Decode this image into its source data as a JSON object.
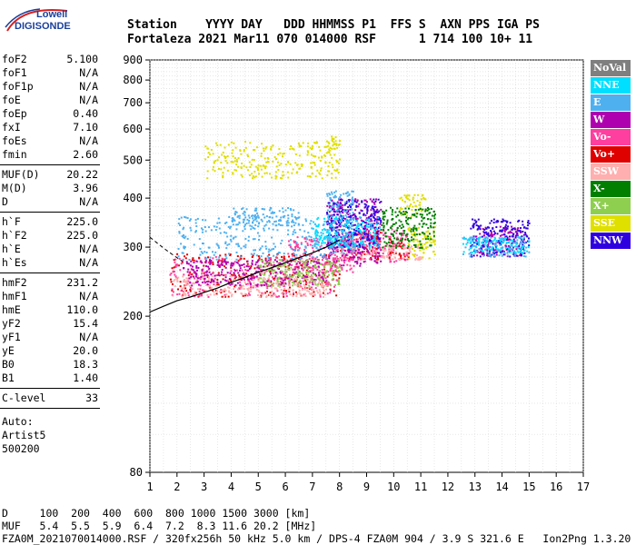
{
  "logo": {
    "line1": "Lowell",
    "line2": "DIGISONDE"
  },
  "header": {
    "labels": "Station    YYYY DAY   DDD HHMMSS P1  FFS S  AXN PPS IGA PS",
    "values": "Fortaleza 2021 Mar11 070 014000 RSF      1 714 100 10+ 11"
  },
  "sidebar": {
    "group1": [
      {
        "k": "foF2",
        "v": "5.100"
      },
      {
        "k": "foF1",
        "v": "N/A"
      },
      {
        "k": "foF1p",
        "v": "N/A"
      },
      {
        "k": "foE",
        "v": "N/A"
      },
      {
        "k": "foEp",
        "v": "0.40"
      },
      {
        "k": "fxI",
        "v": "7.10"
      },
      {
        "k": "foEs",
        "v": "N/A"
      },
      {
        "k": "fmin",
        "v": "2.60"
      }
    ],
    "group2": [
      {
        "k": "MUF(D)",
        "v": "20.22"
      },
      {
        "k": "M(D)",
        "v": "3.96"
      },
      {
        "k": "D",
        "v": "N/A"
      }
    ],
    "group3": [
      {
        "k": "h`F",
        "v": "225.0"
      },
      {
        "k": "h`F2",
        "v": "225.0"
      },
      {
        "k": "h`E",
        "v": "N/A"
      },
      {
        "k": "h`Es",
        "v": "N/A"
      }
    ],
    "group4": [
      {
        "k": "hmF2",
        "v": "231.2"
      },
      {
        "k": "hmF1",
        "v": "N/A"
      },
      {
        "k": "hmE",
        "v": "110.0"
      },
      {
        "k": "yF2",
        "v": "15.4"
      },
      {
        "k": "yF1",
        "v": "N/A"
      },
      {
        "k": "yE",
        "v": "20.0"
      },
      {
        "k": "B0",
        "v": "18.3"
      },
      {
        "k": "B1",
        "v": "1.40"
      }
    ],
    "group5": [
      {
        "k": "C-level",
        "v": "33"
      }
    ],
    "auto": [
      "Auto:",
      "Artist5",
      "500200"
    ]
  },
  "legend": [
    {
      "label": "NoVal",
      "color": "#7f7f7f"
    },
    {
      "label": "NNE",
      "color": "#00dfff"
    },
    {
      "label": "E",
      "color": "#4fb0ef"
    },
    {
      "label": "W",
      "color": "#af00af"
    },
    {
      "label": "Vo-",
      "color": "#ff3f9f"
    },
    {
      "label": "Vo+",
      "color": "#df0000"
    },
    {
      "label": "SSW",
      "color": "#ffafaf"
    },
    {
      "label": "X-",
      "color": "#007f00"
    },
    {
      "label": "X+",
      "color": "#8fcf4f"
    },
    {
      "label": "SSE",
      "color": "#dfdf00"
    },
    {
      "label": "NNW",
      "color": "#2f00df"
    }
  ],
  "footer": {
    "line1": "D     100  200  400  600  800 1000 1500 3000 [km]",
    "line2": "MUF   5.4  5.5  5.9  6.4  7.2  8.3 11.6 20.2 [MHz]",
    "line3": "FZA0M_2021070014000.RSF / 320fx256h 50 kHz 5.0 km / DPS-4 FZA0M 904 / 3.9 S 321.6 E   Ion2Png 1.3.20"
  },
  "chart_data": {
    "type": "scatter",
    "xlim": [
      1,
      17
    ],
    "ylim": [
      80,
      900
    ],
    "xticks": [
      1,
      2,
      3,
      4,
      5,
      6,
      7,
      8,
      9,
      10,
      11,
      12,
      13,
      14,
      15,
      16,
      17
    ],
    "yticks": [
      80,
      200,
      300,
      400,
      500,
      600,
      700,
      800,
      900
    ],
    "grid": true,
    "curve": {
      "x": [
        1.0,
        1.5,
        2.0,
        2.5,
        3.0,
        3.5,
        4.0,
        4.5,
        5.0,
        5.5,
        6.0,
        6.5,
        7.0,
        7.5,
        8.0
      ],
      "y": [
        205,
        212,
        219,
        224,
        230,
        236,
        244,
        251,
        259,
        266,
        274,
        282,
        290,
        300,
        313
      ]
    },
    "dash": {
      "x": [
        1.0,
        1.3,
        1.6,
        1.9,
        2.2
      ],
      "y": [
        318,
        306,
        295,
        285,
        276
      ]
    },
    "series": [
      {
        "color": "#df0000",
        "regions": [
          [
            1.7,
            8.0,
            225,
            290
          ],
          [
            8.0,
            9.5,
            280,
            330
          ],
          [
            9.8,
            10.6,
            280,
            320
          ]
        ]
      },
      {
        "color": "#ff3f9f",
        "regions": [
          [
            1.7,
            8.0,
            225,
            285
          ],
          [
            6.0,
            8.5,
            260,
            320
          ],
          [
            8.0,
            10.5,
            275,
            335
          ]
        ]
      },
      {
        "color": "#ffafaf",
        "regions": [
          [
            1.8,
            7.5,
            225,
            255
          ],
          [
            8.0,
            11.0,
            280,
            305
          ]
        ]
      },
      {
        "color": "#af00af",
        "regions": [
          [
            2.2,
            7.5,
            240,
            280
          ],
          [
            7.5,
            9.5,
            270,
            400
          ],
          [
            13.0,
            14.8,
            285,
            340
          ]
        ]
      },
      {
        "color": "#2f00df",
        "regions": [
          [
            7.5,
            9.5,
            300,
            400
          ],
          [
            12.8,
            15.0,
            285,
            355
          ]
        ]
      },
      {
        "color": "#4fb0ef",
        "regions": [
          [
            2.0,
            7.5,
            280,
            360
          ],
          [
            4.0,
            6.5,
            340,
            380
          ],
          [
            7.5,
            8.5,
            290,
            420
          ],
          [
            12.5,
            15.0,
            285,
            320
          ]
        ]
      },
      {
        "color": "#00dfff",
        "regions": [
          [
            12.5,
            15.0,
            290,
            320
          ],
          [
            7.0,
            9.5,
            300,
            360
          ]
        ]
      },
      {
        "color": "#dfdf00",
        "regions": [
          [
            3.0,
            8.0,
            450,
            560
          ],
          [
            7.5,
            8.0,
            530,
            580
          ],
          [
            10.5,
            11.5,
            280,
            340
          ],
          [
            10.2,
            11.2,
            360,
            410
          ]
        ]
      },
      {
        "color": "#007f00",
        "regions": [
          [
            9.5,
            11.5,
            300,
            380
          ]
        ]
      },
      {
        "color": "#8fcf4f",
        "regions": [
          [
            5.0,
            8.0,
            240,
            280
          ]
        ]
      }
    ]
  }
}
